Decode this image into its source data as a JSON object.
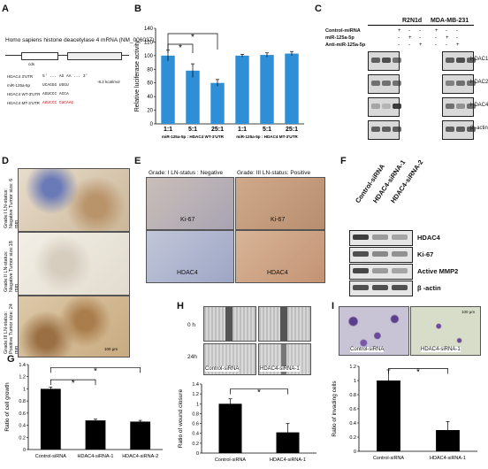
{
  "panels": {
    "A": "A",
    "B": "B",
    "C": "C",
    "D": "D",
    "E": "E",
    "F": "F",
    "G": "G",
    "H": "H",
    "I": "I"
  },
  "panel_a": {
    "title": "Homo sapiens histone deacetylase 4 mRNA (NM_006037)",
    "labels": [
      "cds",
      "HDAC4 3'UTR",
      "miR-125a-5p",
      "HDAC4 WT-3'UTR",
      "HDAC4 MT-3'UTR",
      "-8.2 kcal/mol"
    ],
    "seq": [
      "5' ... AG AA ... 3'",
      "UCAGGG UGGU",
      "AGUCCC ACCA",
      "AGUCCC CUCAAG"
    ]
  },
  "panel_b": {
    "chart_data": {
      "type": "bar",
      "categories": [
        "1:1",
        "5:1",
        "25:1",
        "1:1",
        "5:1",
        "25:1"
      ],
      "values": [
        100,
        78,
        60,
        100,
        101,
        103
      ],
      "errors": [
        8,
        10,
        5,
        2,
        3,
        3
      ],
      "ylabel": "Relative luciferase activity",
      "ylim": [
        0,
        140
      ],
      "yticks": [
        0,
        20,
        40,
        60,
        80,
        100,
        120,
        140
      ],
      "group_labels": [
        "miR-125a-5p : HDAC4 WT-3'UTR",
        "miR-125a-5p : HDAC4 MT-3'UTR"
      ],
      "sig": [
        "*",
        "*"
      ],
      "bar_color": "#2e8fd6"
    }
  },
  "panel_c": {
    "cell_lines": [
      "R2N1d",
      "MDA-MB-231"
    ],
    "row_labels": [
      "Control-miRNA",
      "miR-125a-5p",
      "Anti-miR-125a-5p"
    ],
    "signs": [
      [
        "+",
        "-",
        "-",
        "+",
        "-",
        "-"
      ],
      [
        "-",
        "+",
        "-",
        "-",
        "+",
        "-"
      ],
      [
        "-",
        "-",
        "+",
        "-",
        "-",
        "+"
      ]
    ],
    "proteins": [
      "HDAC1",
      "HDAC2",
      "HDAC4",
      "β -actin"
    ]
  },
  "panel_d": {
    "captions": [
      "Grade:I LN-status: Negative Tumor size: 6 mm",
      "Grade:II LN-status: Negative Tumor size:18 mm",
      "Grade:III LN-status: Positive Tumor size: 24 mm"
    ],
    "scale": "100 μm"
  },
  "panel_e": {
    "headers": [
      "Grade: I  LN-status : Negative",
      "Grade: III  LN-status: Positive"
    ],
    "stains": [
      "Ki-67",
      "Ki-67",
      "HDAC4",
      "HDAC4"
    ]
  },
  "panel_f": {
    "columns": [
      "Control-siRNA",
      "HDAC4-siRNA-1",
      "HDAC4-siRNA-2"
    ],
    "proteins": [
      "HDAC4",
      "Ki-67",
      "Active MMP2",
      "β -actin"
    ]
  },
  "panel_g": {
    "chart_data": {
      "type": "bar",
      "categories": [
        "Control-siRNA",
        "HDAC4-siRNA-1",
        "HDAC4-siRNA-2"
      ],
      "values": [
        1.0,
        0.48,
        0.46
      ],
      "errors": [
        0.03,
        0.02,
        0.02
      ],
      "ylabel": "Ratio of cell growth",
      "ylim": [
        0,
        1.4
      ],
      "yticks": [
        0,
        0.2,
        0.4,
        0.6,
        0.8,
        1,
        1.2,
        1.4
      ],
      "sig": [
        "*",
        "*"
      ]
    }
  },
  "panel_h": {
    "time_labels": [
      "0 h",
      "24h"
    ],
    "image_labels": [
      "Control-siRNA",
      "HDAC4-siRNA-1"
    ],
    "chart_data": {
      "type": "bar",
      "categories": [
        "Control-siRNA",
        "HDAC4-siRNA-1"
      ],
      "values": [
        1.0,
        0.42
      ],
      "errors": [
        0.1,
        0.18
      ],
      "ylabel": "Ratio of wound closure",
      "ylim": [
        0,
        1.4
      ],
      "yticks": [
        0,
        0.2,
        0.4,
        0.6,
        0.8,
        1,
        1.2,
        1.4
      ],
      "sig": [
        "*"
      ]
    }
  },
  "panel_i": {
    "image_labels": [
      "Control-siRNA",
      "HDAC4-siRNA-1"
    ],
    "scale": "100 μm",
    "chart_data": {
      "type": "bar",
      "categories": [
        "Control-siRNA",
        "HDAC4-siRNA-1"
      ],
      "values": [
        1.0,
        0.3
      ],
      "errors": [
        0.15,
        0.12
      ],
      "ylabel": "Ratio of invading cells",
      "ylim": [
        0,
        1.2
      ],
      "yticks": [
        0,
        0.2,
        0.4,
        0.6,
        0.8,
        1,
        1.2
      ],
      "sig": [
        "*"
      ]
    }
  }
}
